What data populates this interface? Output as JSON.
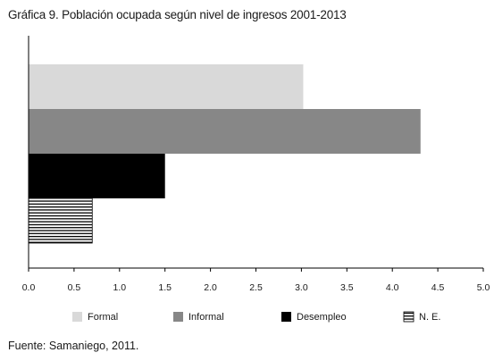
{
  "title": "Gráfica 9. Población ocupada según nivel de ingresos 2001-2013",
  "source": "Fuente: Samaniego, 2011.",
  "chart_data": {
    "type": "bar",
    "orientation": "horizontal",
    "series": [
      {
        "name": "Formal",
        "value": 3.02,
        "color": "#d9d9d9",
        "pattern": "solid"
      },
      {
        "name": "Informal",
        "value": 4.31,
        "color": "#878787",
        "pattern": "solid"
      },
      {
        "name": "Desempleo",
        "value": 1.5,
        "color": "#000000",
        "pattern": "solid"
      },
      {
        "name": "N. E.",
        "value": 0.7,
        "color": "#000000",
        "pattern": "horizontal-stripes"
      }
    ],
    "xlim": [
      0,
      5
    ],
    "ticks": [
      "0.0",
      "0.5",
      "1.0",
      "1.5",
      "2.0",
      "2.5",
      "3.0",
      "3.5",
      "4.0",
      "4.5",
      "5.0"
    ],
    "grid": false,
    "legend_position": "bottom"
  }
}
